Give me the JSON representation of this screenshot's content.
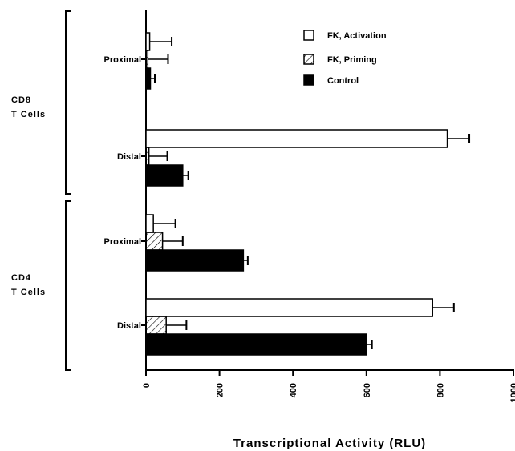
{
  "chart_data": {
    "type": "bar",
    "orientation": "horizontal",
    "xlabel": "Transcriptional Activity (RLU)",
    "xlim": [
      0,
      1000
    ],
    "xticks": [
      "0",
      "200",
      "400",
      "600",
      "800",
      "1000"
    ],
    "grid": false,
    "legend_position": "top-right",
    "series": [
      {
        "name": "FK, Activation",
        "fill": "#ffffff",
        "pattern": "none"
      },
      {
        "name": "FK, Priming",
        "fill": "#ffffff",
        "pattern": "hatch"
      },
      {
        "name": "Control",
        "fill": "#000000",
        "pattern": "none"
      }
    ],
    "groups": [
      {
        "label": [
          "CD8",
          "T  Cells"
        ],
        "categories": [
          {
            "label": "Proximal",
            "values": [
              10,
              5,
              12
            ],
            "errors": [
              60,
              55,
              12
            ]
          },
          {
            "label": "Distal",
            "values": [
              820,
              8,
              100
            ],
            "errors": [
              60,
              50,
              15
            ]
          }
        ]
      },
      {
        "label": [
          "CD4",
          "T  Cells"
        ],
        "categories": [
          {
            "label": "Proximal",
            "values": [
              20,
              45,
              265
            ],
            "errors": [
              60,
              55,
              12
            ]
          },
          {
            "label": "Distal",
            "values": [
              780,
              55,
              600
            ],
            "errors": [
              58,
              55,
              15
            ]
          }
        ]
      }
    ]
  }
}
